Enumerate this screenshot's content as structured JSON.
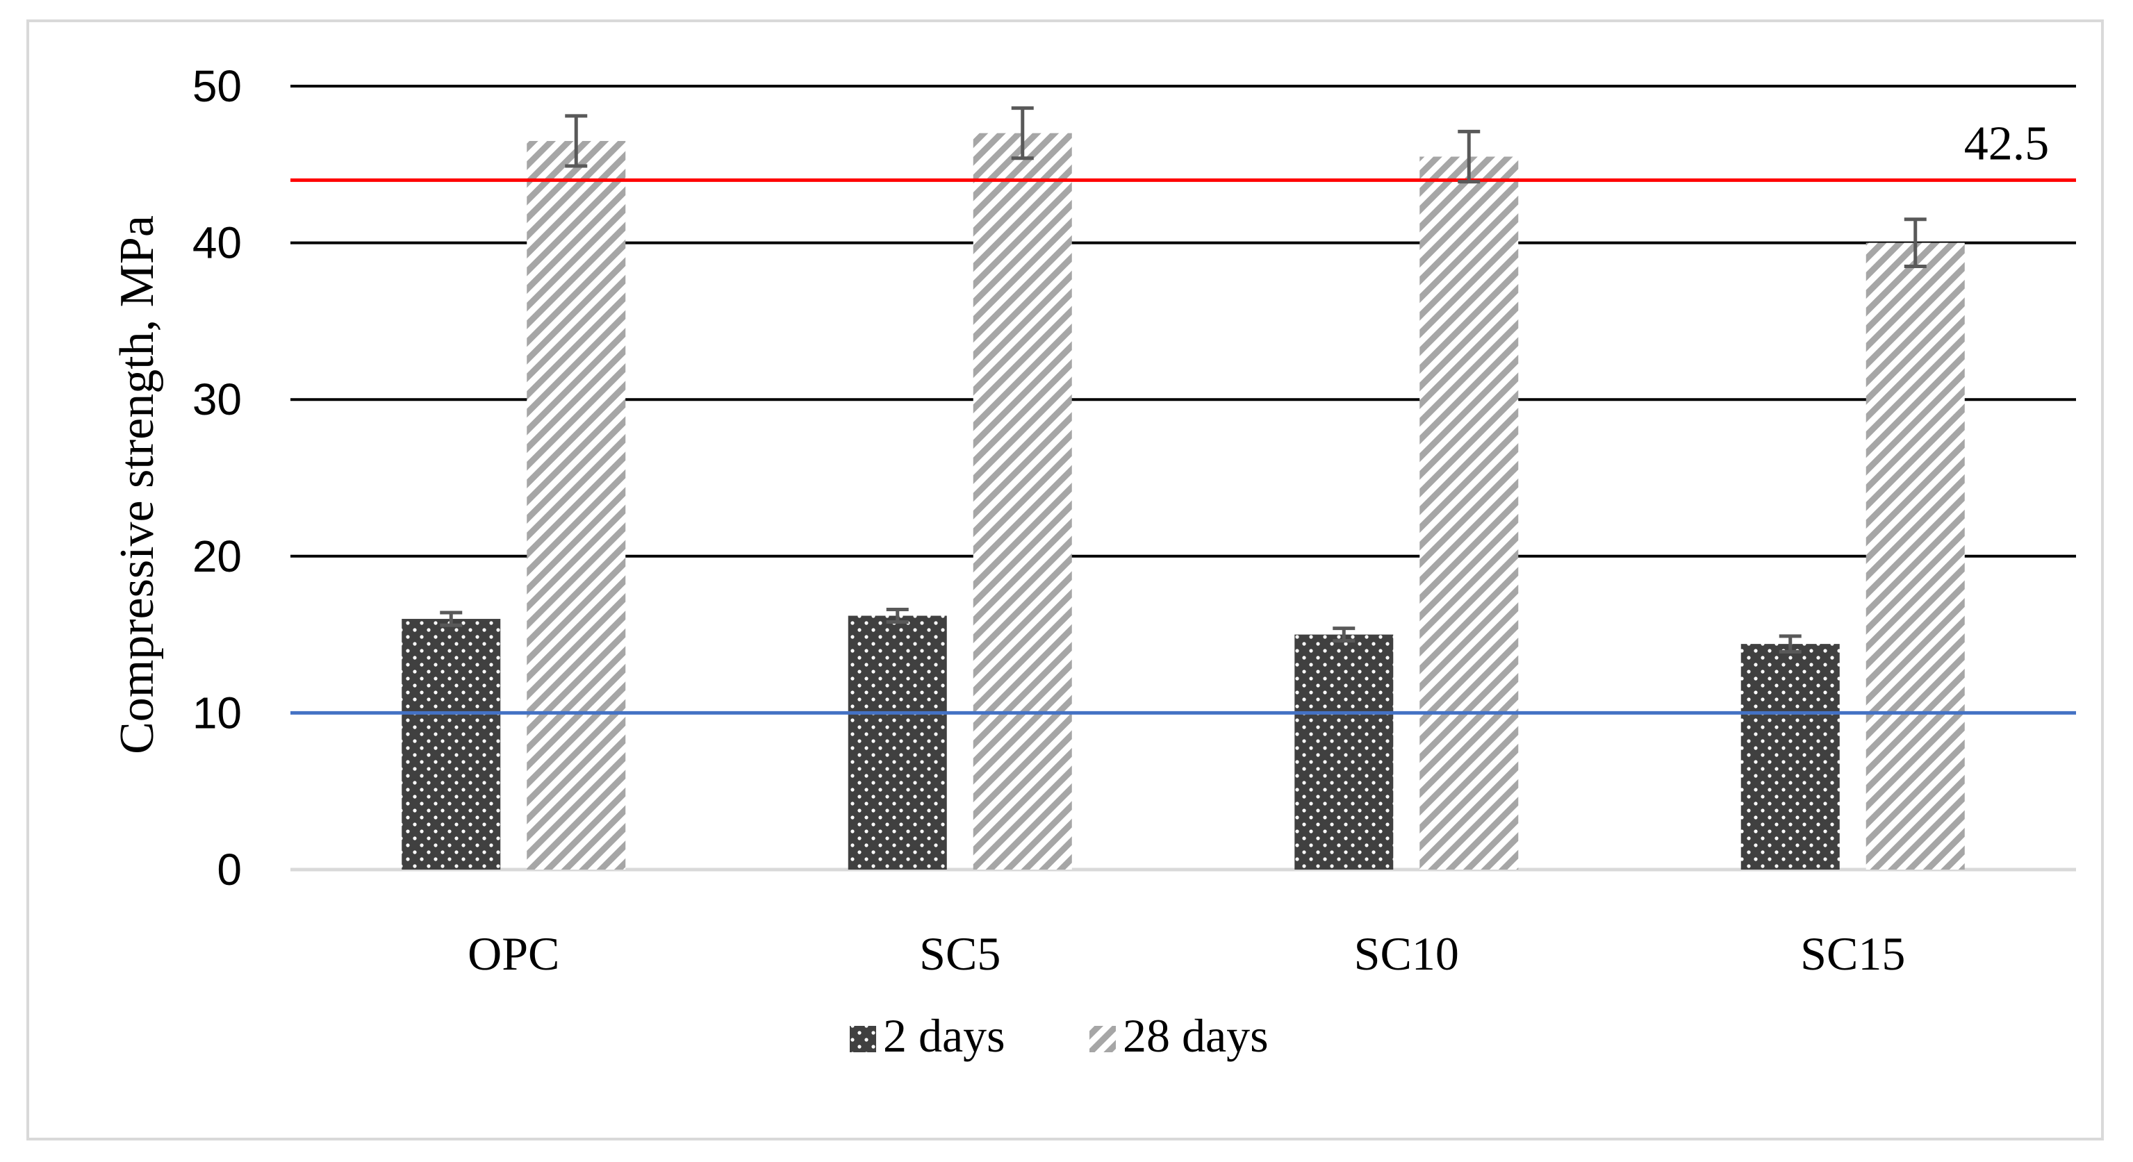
{
  "chart_data": {
    "type": "bar",
    "title": "",
    "xlabel": "",
    "ylabel": "Compressive strength, MPa",
    "ylim": [
      0,
      50
    ],
    "yticks": [
      "0",
      "10",
      "20",
      "30",
      "40",
      "50"
    ],
    "grid": true,
    "categories": [
      "OPC",
      "SC5",
      "SC10",
      "SC15"
    ],
    "series": [
      {
        "name": "2 days",
        "values": [
          16.0,
          16.2,
          15.0,
          14.4
        ],
        "errors": [
          0.4,
          0.4,
          0.4,
          0.5
        ],
        "pattern": "dots",
        "color": "#404040"
      },
      {
        "name": "28 days",
        "values": [
          46.5,
          47.0,
          45.5,
          40.0
        ],
        "errors": [
          1.6,
          1.6,
          1.6,
          1.5
        ],
        "pattern": "diagonal",
        "color": "#a6a6a6"
      }
    ],
    "reference_lines": [
      {
        "value": 44.0,
        "color": "#ff0000",
        "label": "42.5"
      },
      {
        "value": 10.0,
        "color": "#4472c4",
        "label": ""
      }
    ],
    "legend_position": "bottom"
  }
}
